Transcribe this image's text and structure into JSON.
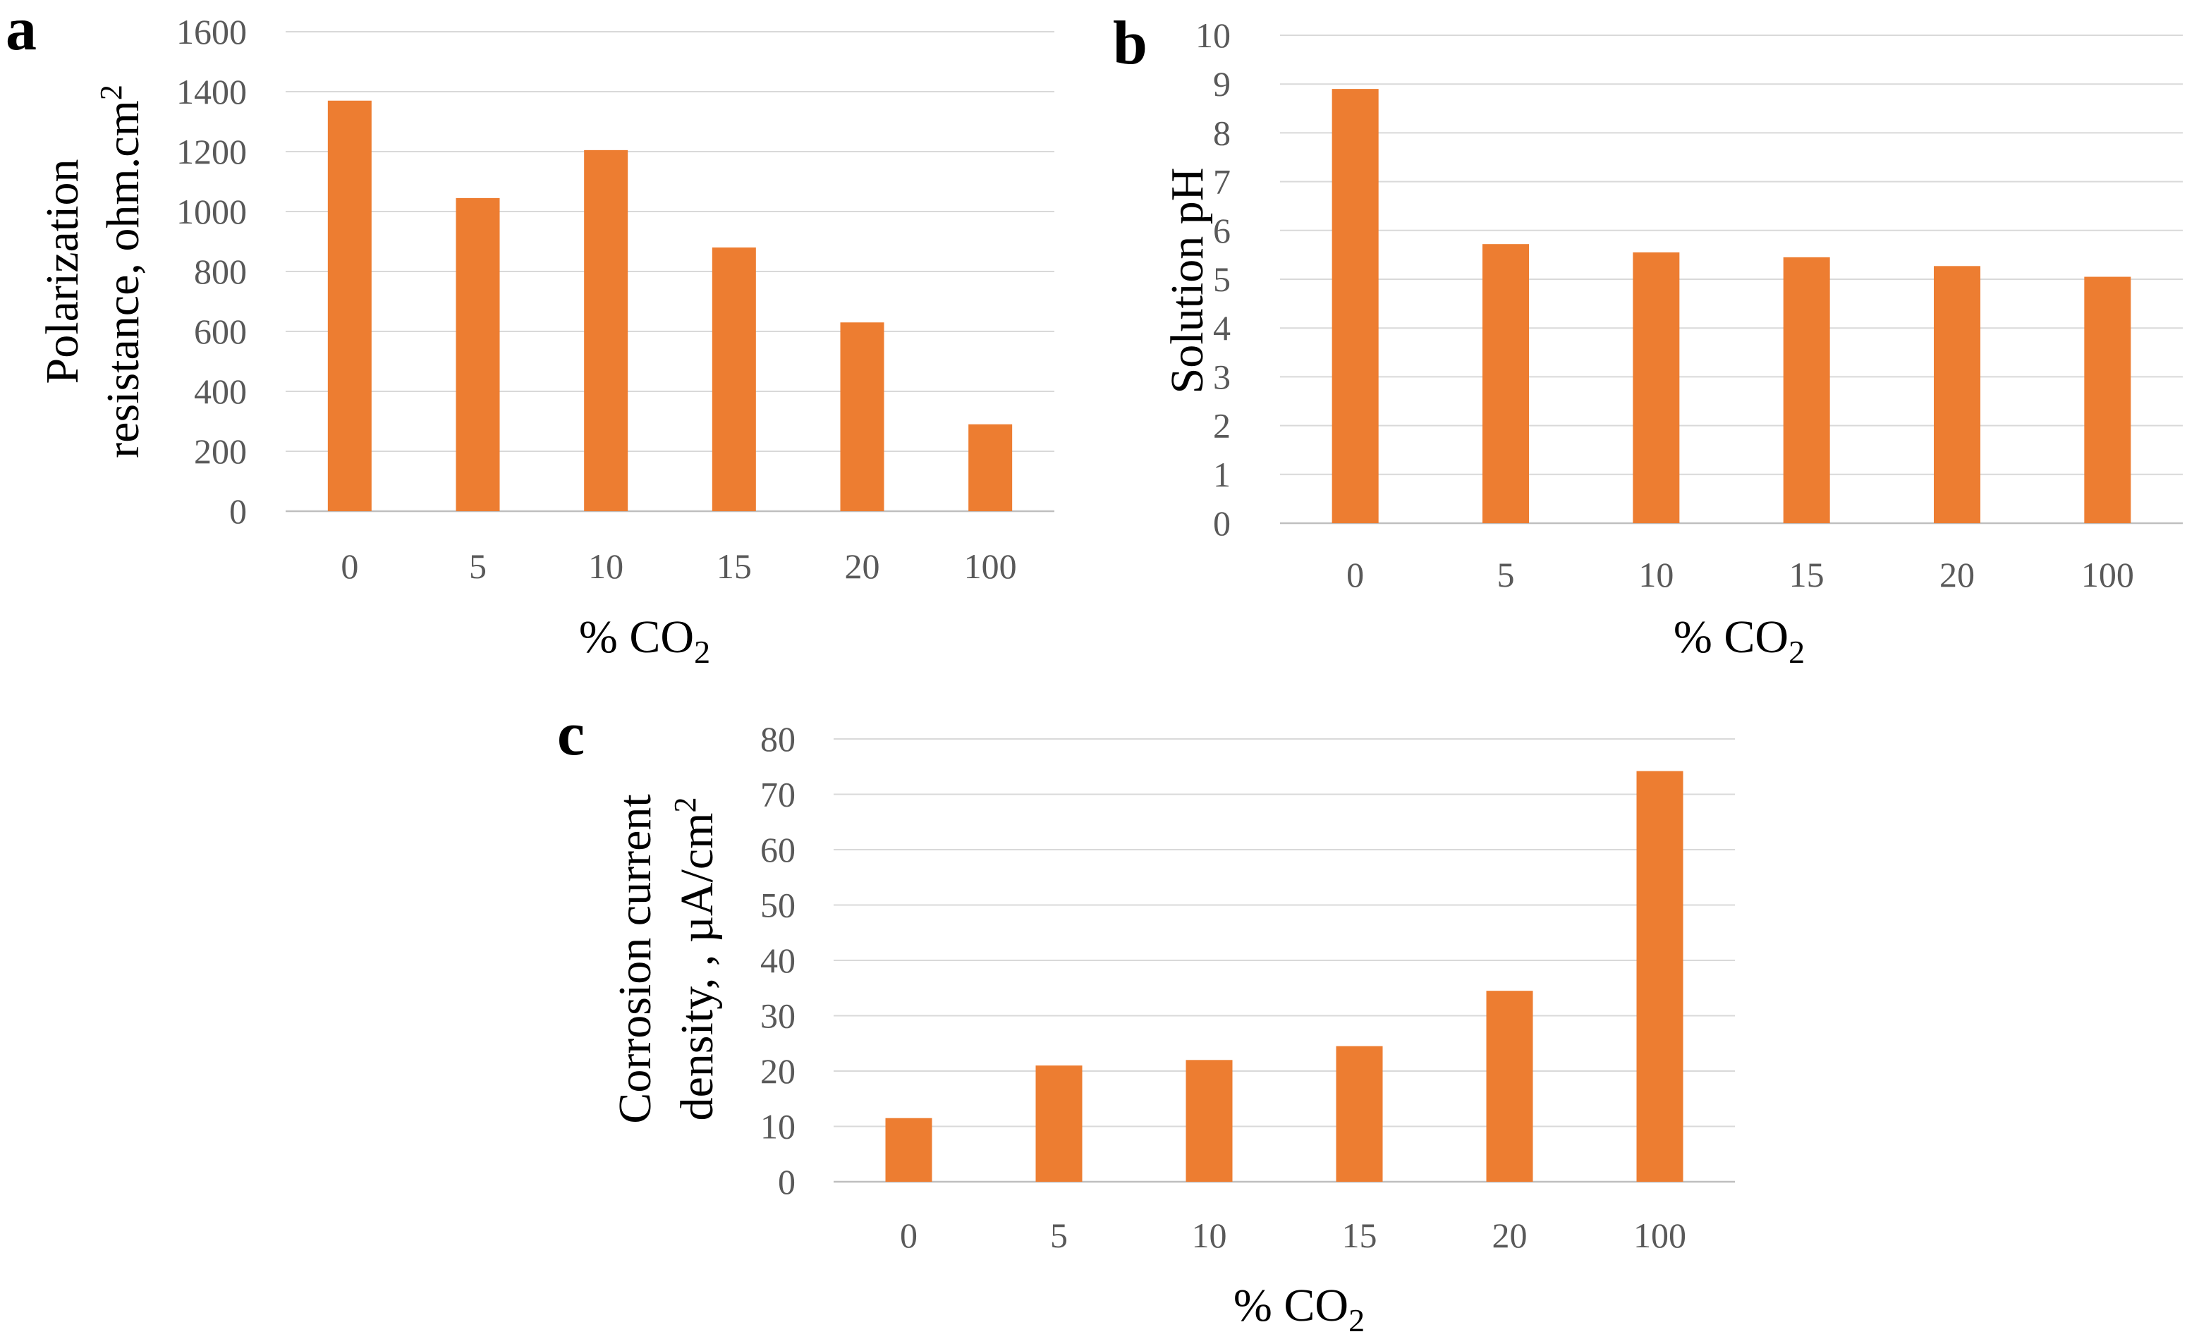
{
  "colors": {
    "bar": "#ED7D31",
    "grid": "#D9D9D9",
    "tick_text": "#595959"
  },
  "chart_data": [
    {
      "type": "bar",
      "panel_label": "a",
      "categories": [
        "0",
        "5",
        "10",
        "15",
        "20",
        "100"
      ],
      "values": [
        1370,
        1045,
        1205,
        880,
        630,
        290
      ],
      "yticks": [
        "0",
        "200",
        "400",
        "600",
        "800",
        "1000",
        "1200",
        "1400",
        "1600"
      ],
      "ylim": [
        0,
        1600
      ],
      "xlabel": "% CO",
      "xlabel_sub": "2",
      "ylabel_line1": "Polarization",
      "ylabel_line2": "resistance, ohm.cm",
      "ylabel_sup": "2",
      "grid": true
    },
    {
      "type": "bar",
      "panel_label": "b",
      "categories": [
        "0",
        "5",
        "10",
        "15",
        "20",
        "100"
      ],
      "values": [
        8.9,
        5.72,
        5.55,
        5.45,
        5.27,
        5.05
      ],
      "yticks": [
        "0",
        "1",
        "2",
        "3",
        "4",
        "5",
        "6",
        "7",
        "8",
        "9",
        "10"
      ],
      "ylim": [
        0,
        10
      ],
      "xlabel": "% CO",
      "xlabel_sub": "2",
      "ylabel_line1": "Solution pH",
      "grid": true
    },
    {
      "type": "bar",
      "panel_label": "c",
      "categories": [
        "0",
        "5",
        "10",
        "15",
        "20",
        "100"
      ],
      "values": [
        11.5,
        21,
        22,
        24.5,
        34.5,
        74.2
      ],
      "yticks": [
        "0",
        "10",
        "20",
        "30",
        "40",
        "50",
        "60",
        "70",
        "80"
      ],
      "ylim": [
        0,
        80
      ],
      "xlabel": "% CO",
      "xlabel_sub": "2",
      "ylabel_line1": "Corrosion current",
      "ylabel_line2": "density, , µA/cm",
      "ylabel_sup": "2",
      "grid": true
    }
  ]
}
